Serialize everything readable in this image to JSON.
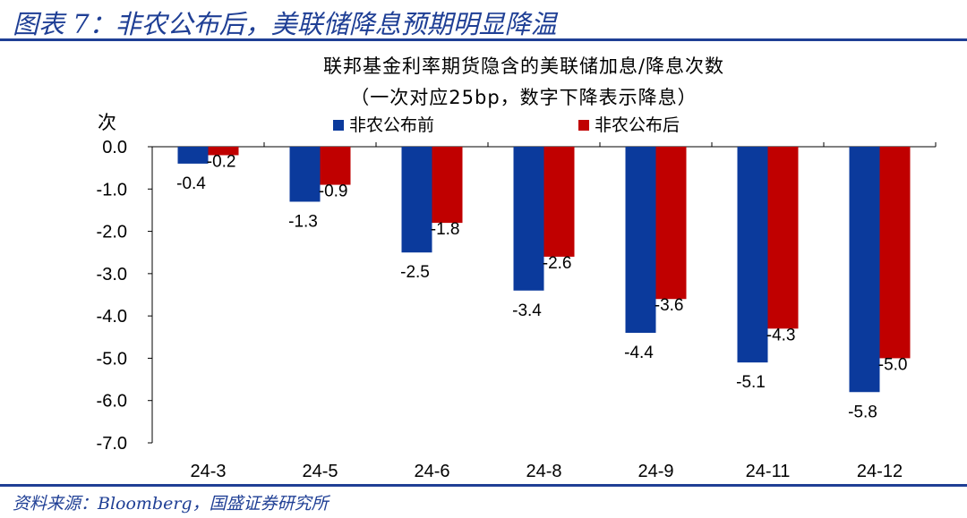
{
  "header": {
    "title": "图表 7：非农公布后，美联储降息预期明显降温",
    "source": "资料来源：Bloomberg，国盛证券研究所"
  },
  "colors": {
    "accent": "#1f3f95",
    "series_before": "#0b3a9c",
    "series_after": "#c00000"
  },
  "chart_data": {
    "type": "bar",
    "title": "联邦基金利率期货隐含的美联储加息/降息次数",
    "subtitle": "（一次对应25bp，数字下降表示降息）",
    "ylabel": "次",
    "xlabel": "",
    "categories": [
      "24-3",
      "24-5",
      "24-6",
      "24-8",
      "24-9",
      "24-11",
      "24-12"
    ],
    "series": [
      {
        "name": "非农公布前",
        "values": [
          -0.4,
          -1.3,
          -2.5,
          -3.4,
          -4.4,
          -5.1,
          -5.8
        ]
      },
      {
        "name": "非农公布后",
        "values": [
          -0.2,
          -0.9,
          -1.8,
          -2.6,
          -3.6,
          -4.3,
          -5.0
        ]
      }
    ],
    "ylim": [
      -7.0,
      0.0
    ],
    "yticks": [
      "0.0",
      "-1.0",
      "-2.0",
      "-3.0",
      "-4.0",
      "-5.0",
      "-6.0",
      "-7.0"
    ],
    "legend_position": "top-center",
    "grid": false
  }
}
